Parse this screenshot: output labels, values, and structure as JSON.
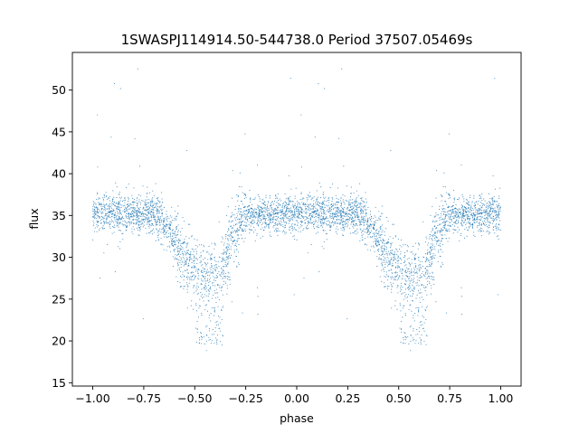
{
  "chart_data": {
    "type": "scatter",
    "title": "1SWASPJ114914.50-544738.0 Period 37507.05469s",
    "xlabel": "phase",
    "ylabel": "flux",
    "xlim": [
      -1.1,
      1.1
    ],
    "ylim": [
      14.6,
      54.5
    ],
    "xticks": [
      -1.0,
      -0.75,
      -0.5,
      -0.25,
      0.0,
      0.25,
      0.5,
      0.75,
      1.0
    ],
    "xtick_labels": [
      "−1.00",
      "−0.75",
      "−0.50",
      "−0.25",
      "0.00",
      "0.25",
      "0.50",
      "0.75",
      "1.00"
    ],
    "yticks": [
      15,
      20,
      25,
      30,
      35,
      40,
      45,
      50
    ],
    "ytick_labels": [
      "15",
      "20",
      "25",
      "30",
      "35",
      "40",
      "45",
      "50"
    ],
    "grid": false,
    "marker_color": "#1f77b4",
    "series": [
      {
        "description": "phase-folded light curve, median flux profile (points scattered around it)",
        "baseline_flux": 35.3,
        "profile_phase": [
          0.0,
          0.3,
          0.34,
          0.38,
          0.42,
          0.46,
          0.5,
          0.54,
          0.58,
          0.62,
          0.66,
          0.7,
          0.74,
          1.0
        ],
        "profile_flux": [
          35.3,
          35.2,
          34.5,
          33.0,
          31.0,
          29.0,
          28.2,
          28.0,
          27.8,
          28.3,
          30.5,
          33.5,
          35.0,
          35.3
        ],
        "primary_minimum": [
          {
            "phase": -0.44,
            "flux": 19.8
          },
          {
            "phase": 0.56,
            "flux": 19.8
          }
        ],
        "secondary_shoulder_flux": 28.0
      }
    ]
  }
}
